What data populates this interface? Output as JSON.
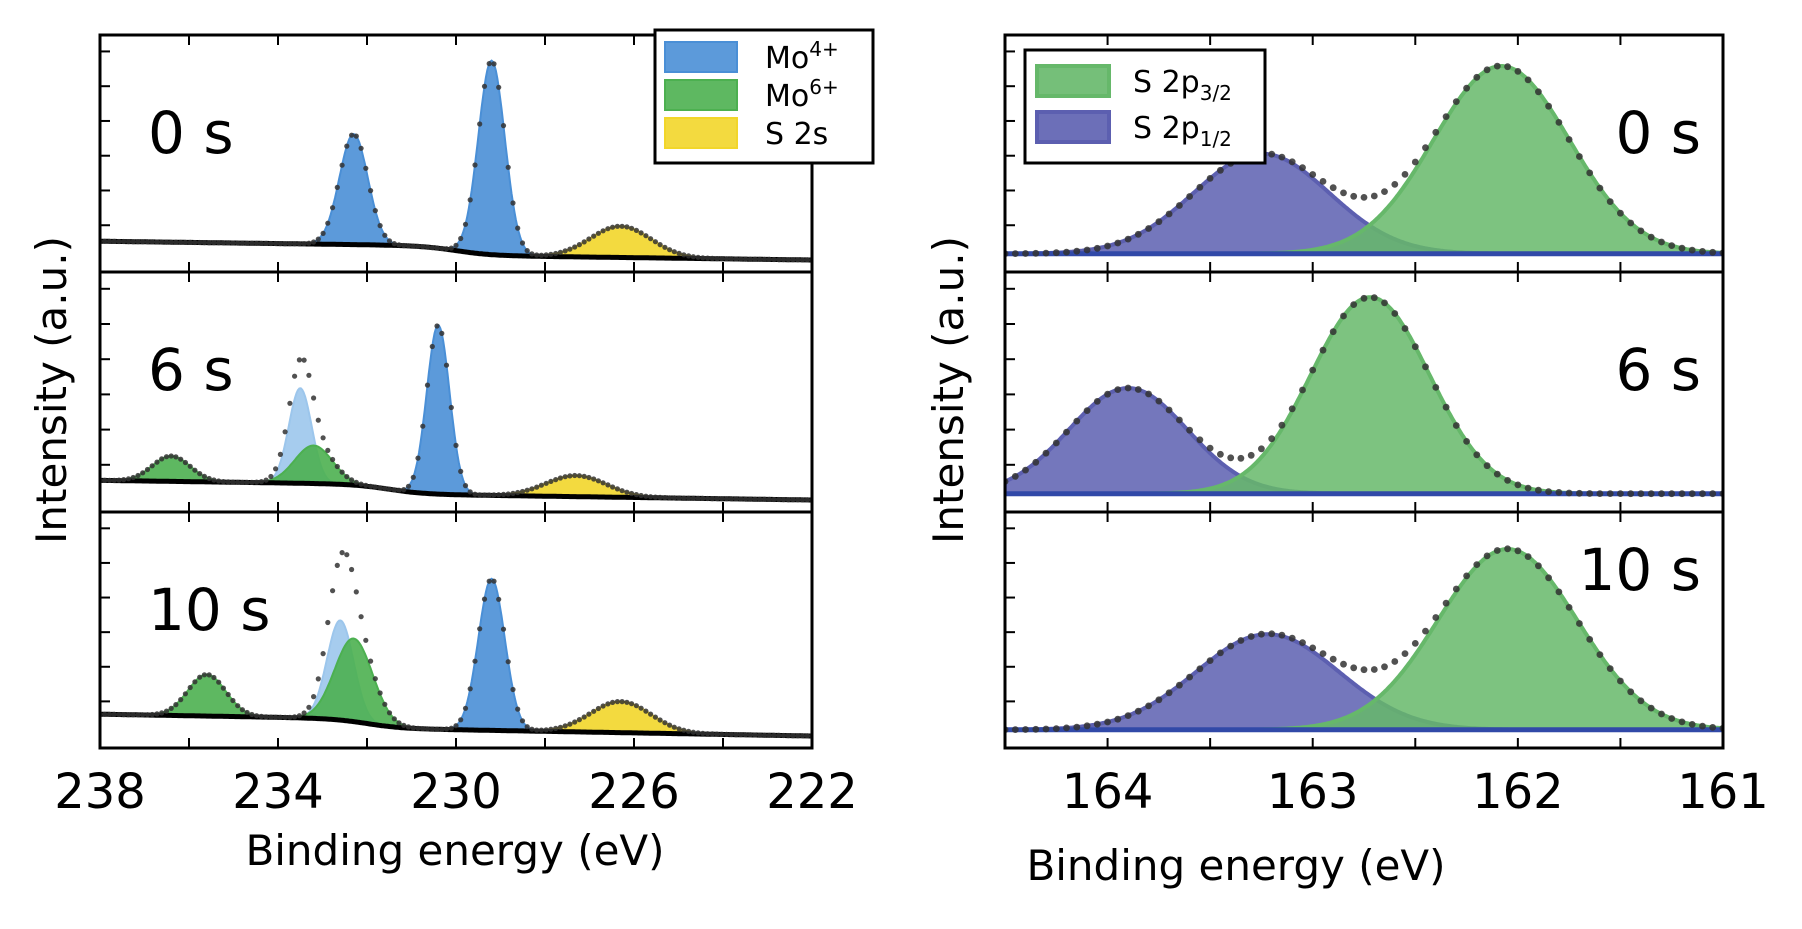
{
  "colors": {
    "mo4": "#4a8fd6",
    "mo4_light": "#9cc6ec",
    "mo6": "#4cb050",
    "s2s": "#f2d62a",
    "s2p32": "#66b86a",
    "s2p12": "#5c5fb0",
    "bg_line": "#3149a8",
    "data_dots": "#333333",
    "frame": "#000000"
  },
  "chart_data": [
    {
      "type": "area",
      "panel": "left",
      "xlabel": "Binding energy (eV)",
      "ylabel": "Intensity (a.u.)",
      "xlim": [
        238,
        222
      ],
      "x_tick_labels": [
        "238",
        "234",
        "230",
        "226",
        "222"
      ],
      "legend": {
        "placement": "top-right",
        "entries": [
          {
            "key": "mo4",
            "label": "Mo",
            "sup": "4+"
          },
          {
            "key": "mo6",
            "label": "Mo",
            "sup": "6+"
          },
          {
            "key": "s2s",
            "label": "S 2s",
            "sup": ""
          }
        ]
      },
      "subplots": [
        {
          "label": "0 s",
          "ymax": 1.0,
          "background": {
            "y_at_xmin": 0.075,
            "y_at_xmax": 0.0,
            "step_center": 230.0,
            "step_height": 0.045
          },
          "peaks": [
            {
              "component": "Mo4+ 3d3/2",
              "center": 232.3,
              "height": 0.53,
              "fwhm": 0.75,
              "color": "mo4"
            },
            {
              "component": "Mo4+ 3d5/2",
              "center": 229.2,
              "height": 0.93,
              "fwhm": 0.7,
              "color": "mo4"
            },
            {
              "component": "S 2s",
              "center": 226.3,
              "height": 0.15,
              "fwhm": 1.6,
              "color": "s2s"
            }
          ]
        },
        {
          "label": "6 s",
          "ymax": 1.0,
          "background": {
            "y_at_xmin": 0.08,
            "y_at_xmax": 0.0,
            "step_center": 231.5,
            "step_height": 0.045
          },
          "peaks": [
            {
              "component": "Mo6+ 3d3/2",
              "center": 236.4,
              "height": 0.12,
              "fwhm": 1.0,
              "color": "mo6"
            },
            {
              "component": "Mo4+ 3d3/2",
              "center": 233.5,
              "height": 0.45,
              "fwhm": 0.6,
              "color": "mo4_light"
            },
            {
              "component": "Mo6+ 3d5/2",
              "center": 233.2,
              "height": 0.18,
              "fwhm": 1.0,
              "color": "mo6"
            },
            {
              "component": "Mo4+ 3d5/2",
              "center": 230.4,
              "height": 0.8,
              "fwhm": 0.6,
              "color": "mo4"
            },
            {
              "component": "S 2s",
              "center": 227.3,
              "height": 0.1,
              "fwhm": 1.6,
              "color": "s2s"
            }
          ]
        },
        {
          "label": "10 s",
          "ymax": 1.0,
          "background": {
            "y_at_xmin": 0.1,
            "y_at_xmax": 0.0,
            "step_center": 232.0,
            "step_height": 0.045
          },
          "peaks": [
            {
              "component": "Mo6+ 3d3/2",
              "center": 235.6,
              "height": 0.2,
              "fwhm": 1.0,
              "color": "mo6"
            },
            {
              "component": "Mo4+ 3d3/2",
              "center": 232.6,
              "height": 0.48,
              "fwhm": 0.7,
              "color": "mo4_light"
            },
            {
              "component": "Mo6+ 3d5/2",
              "center": 232.3,
              "height": 0.4,
              "fwhm": 1.0,
              "color": "mo6"
            },
            {
              "component": "Mo4+ 3d5/2",
              "center": 229.2,
              "height": 0.73,
              "fwhm": 0.7,
              "color": "mo4"
            },
            {
              "component": "S 2s",
              "center": 226.3,
              "height": 0.15,
              "fwhm": 1.6,
              "color": "s2s"
            }
          ]
        }
      ]
    },
    {
      "type": "area",
      "panel": "right",
      "xlabel": "Binding energy (eV)",
      "ylabel": "Intensity (a.u.)",
      "xlim": [
        164.5,
        161
      ],
      "x_tick_labels": [
        "164",
        "163",
        "162",
        "161"
      ],
      "legend": {
        "placement": "top-left",
        "entries": [
          {
            "key": "s2p32",
            "label": "S 2p",
            "sub": "3/2"
          },
          {
            "key": "s2p12",
            "label": "S 2p",
            "sub": "1/2"
          }
        ]
      },
      "subplots": [
        {
          "label": "0 s",
          "ymax": 1.0,
          "baseline": 0.03,
          "peaks": [
            {
              "component": "S 2p1/2",
              "center": 163.25,
              "height": 0.48,
              "fwhm": 0.78,
              "color": "s2p12"
            },
            {
              "component": "S 2p3/2",
              "center": 162.08,
              "height": 0.9,
              "fwhm": 0.78,
              "color": "s2p32"
            }
          ]
        },
        {
          "label": "6 s",
          "ymax": 1.0,
          "baseline": 0.03,
          "peaks": [
            {
              "component": "S 2p1/2",
              "center": 163.9,
              "height": 0.5,
              "fwhm": 0.68,
              "color": "s2p12"
            },
            {
              "component": "S 2p3/2",
              "center": 162.72,
              "height": 0.93,
              "fwhm": 0.68,
              "color": "s2p32"
            }
          ]
        },
        {
          "label": "10 s",
          "ymax": 1.0,
          "baseline": 0.03,
          "peaks": [
            {
              "component": "S 2p1/2",
              "center": 163.22,
              "height": 0.46,
              "fwhm": 0.82,
              "color": "s2p12"
            },
            {
              "component": "S 2p3/2",
              "center": 162.05,
              "height": 0.87,
              "fwhm": 0.8,
              "color": "s2p32"
            }
          ]
        }
      ]
    }
  ]
}
